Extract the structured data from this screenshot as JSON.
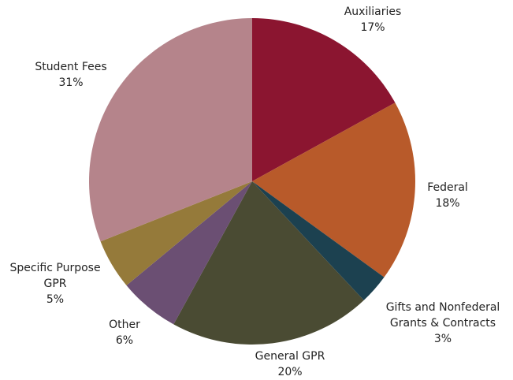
{
  "chart_data": {
    "type": "pie",
    "categories": [
      "Auxiliaries",
      "Federal",
      "Gifts and Nonfederal Grants & Contracts",
      "General GPR",
      "Other",
      "Specific Purpose GPR",
      "Student Fees"
    ],
    "values": [
      17,
      18,
      3,
      20,
      6,
      5,
      31
    ],
    "value_labels": [
      "17%",
      "18%",
      "3%",
      "20%",
      "6%",
      "5%",
      "31%"
    ],
    "colors": [
      "#8b1530",
      "#b85a2a",
      "#1c4150",
      "#4a4b33",
      "#6b4f73",
      "#957a3a",
      "#b5848b"
    ]
  }
}
